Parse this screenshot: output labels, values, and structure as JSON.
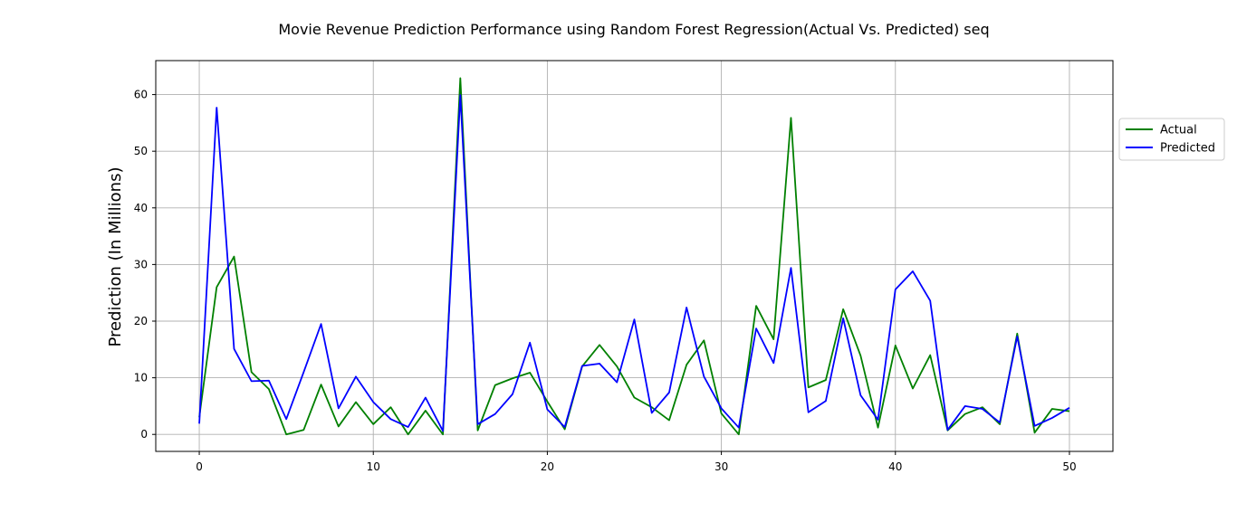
{
  "chart_data": {
    "type": "line",
    "title": "Movie Revenue Prediction Performance using Random Forest Regression(Actual Vs. Predicted) seq",
    "xlabel": "",
    "ylabel": "Prediction (In Millions)",
    "xlim": [
      -2.5,
      52.5
    ],
    "ylim": [
      -3.0,
      66.0
    ],
    "xticks": [
      0,
      10,
      20,
      30,
      40,
      50
    ],
    "yticks": [
      0,
      10,
      20,
      30,
      40,
      50,
      60
    ],
    "grid": true,
    "legend_position": "right, outside plot",
    "x": [
      0,
      1,
      2,
      3,
      4,
      5,
      6,
      7,
      8,
      9,
      10,
      11,
      12,
      13,
      14,
      15,
      16,
      17,
      18,
      19,
      20,
      21,
      22,
      23,
      24,
      25,
      26,
      27,
      28,
      29,
      30,
      31,
      32,
      33,
      34,
      35,
      36,
      37,
      38,
      39,
      40,
      41,
      42,
      43,
      44,
      45,
      46,
      47,
      48,
      49,
      50
    ],
    "series": [
      {
        "name": "Actual",
        "color": "#008000",
        "values": [
          3.0,
          26.0,
          31.4,
          11.0,
          8.0,
          0.0,
          0.8,
          8.8,
          1.4,
          5.7,
          1.8,
          4.8,
          0.0,
          4.2,
          0.0,
          62.9,
          0.7,
          8.7,
          9.9,
          10.9,
          5.8,
          0.9,
          12.0,
          15.8,
          12.0,
          6.5,
          4.8,
          2.5,
          12.3,
          16.6,
          3.7,
          0.0,
          22.7,
          16.8,
          55.9,
          8.3,
          9.6,
          22.1,
          13.9,
          1.2,
          15.7,
          8.1,
          14.0,
          0.7,
          3.6,
          4.8,
          1.8,
          17.8,
          0.3,
          4.5,
          4.1
        ]
      },
      {
        "name": "Predicted",
        "color": "#0000ff",
        "values": [
          1.9,
          57.7,
          15.1,
          9.4,
          9.5,
          2.7,
          11.0,
          19.5,
          4.6,
          10.2,
          5.7,
          2.7,
          1.3,
          6.5,
          0.6,
          59.9,
          1.8,
          3.6,
          7.1,
          16.2,
          4.4,
          1.3,
          12.1,
          12.5,
          9.2,
          20.3,
          3.8,
          7.4,
          22.4,
          10.2,
          4.6,
          1.2,
          18.7,
          12.6,
          29.4,
          3.9,
          5.9,
          20.5,
          6.9,
          2.6,
          25.6,
          28.8,
          23.6,
          0.8,
          5.0,
          4.5,
          2.1,
          17.3,
          1.5,
          2.9,
          4.7
        ]
      }
    ]
  }
}
